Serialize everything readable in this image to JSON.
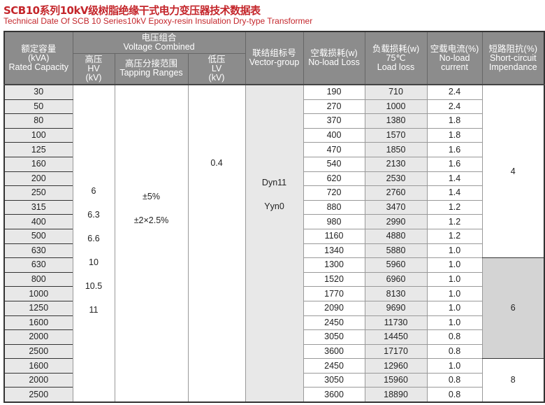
{
  "title": "SCB10系列10kV级树脂绝缘干式电力变压器技术数据表",
  "subtitle": "Technical Date Of SCB 10 Series10kV Epoxy-resin Insulation Dry-type Transformer",
  "headers": {
    "capacity": [
      "额定容量",
      "(kVA)",
      "Rated Capacity"
    ],
    "voltage": [
      "电压组合",
      "Voltage Combined"
    ],
    "hv": [
      "高压",
      "HV",
      "(kV)"
    ],
    "tapping": [
      "高压分接范围",
      "Tapping Ranges"
    ],
    "lv": [
      "低压",
      "LV",
      "(kV)"
    ],
    "vector": [
      "联结组标号",
      "Vector-group"
    ],
    "noload": [
      "空载损耗(w)",
      "No-load Loss"
    ],
    "load": [
      "负载损耗(w)",
      "75℃",
      "Load loss"
    ],
    "current": [
      "空载电流(%)",
      "No-load",
      "current"
    ],
    "impedance": [
      "短路阻抗(%)",
      "Short-circuit",
      "Impendance"
    ]
  },
  "merged": {
    "hv": [
      "6",
      "6.3",
      "6.6",
      "10",
      "10.5",
      "11"
    ],
    "tapping": [
      "±5%",
      "±2×2.5%"
    ],
    "lv": "0.4",
    "vector": [
      "Dyn11",
      "Yyn0"
    ],
    "impedance": [
      "4",
      "6",
      "8"
    ]
  },
  "rows": [
    [
      "30",
      "190",
      "710",
      "2.4"
    ],
    [
      "50",
      "270",
      "1000",
      "2.4"
    ],
    [
      "80",
      "370",
      "1380",
      "1.8"
    ],
    [
      "100",
      "400",
      "1570",
      "1.8"
    ],
    [
      "125",
      "470",
      "1850",
      "1.6"
    ],
    [
      "160",
      "540",
      "2130",
      "1.6"
    ],
    [
      "200",
      "620",
      "2530",
      "1.4"
    ],
    [
      "250",
      "720",
      "2760",
      "1.4"
    ],
    [
      "315",
      "880",
      "3470",
      "1.2"
    ],
    [
      "400",
      "980",
      "2990",
      "1.2"
    ],
    [
      "500",
      "1160",
      "4880",
      "1.2"
    ],
    [
      "630",
      "1340",
      "5880",
      "1.0"
    ],
    [
      "630",
      "1300",
      "5960",
      "1.0"
    ],
    [
      "800",
      "1520",
      "6960",
      "1.0"
    ],
    [
      "1000",
      "1770",
      "8130",
      "1.0"
    ],
    [
      "1250",
      "2090",
      "9690",
      "1.0"
    ],
    [
      "1600",
      "2450",
      "11730",
      "1.0"
    ],
    [
      "2000",
      "3050",
      "14450",
      "0.8"
    ],
    [
      "2500",
      "3600",
      "17170",
      "0.8"
    ],
    [
      "1600",
      "2450",
      "12960",
      "1.0"
    ],
    [
      "2000",
      "3050",
      "15960",
      "0.8"
    ],
    [
      "2500",
      "3600",
      "18890",
      "0.8"
    ]
  ]
}
